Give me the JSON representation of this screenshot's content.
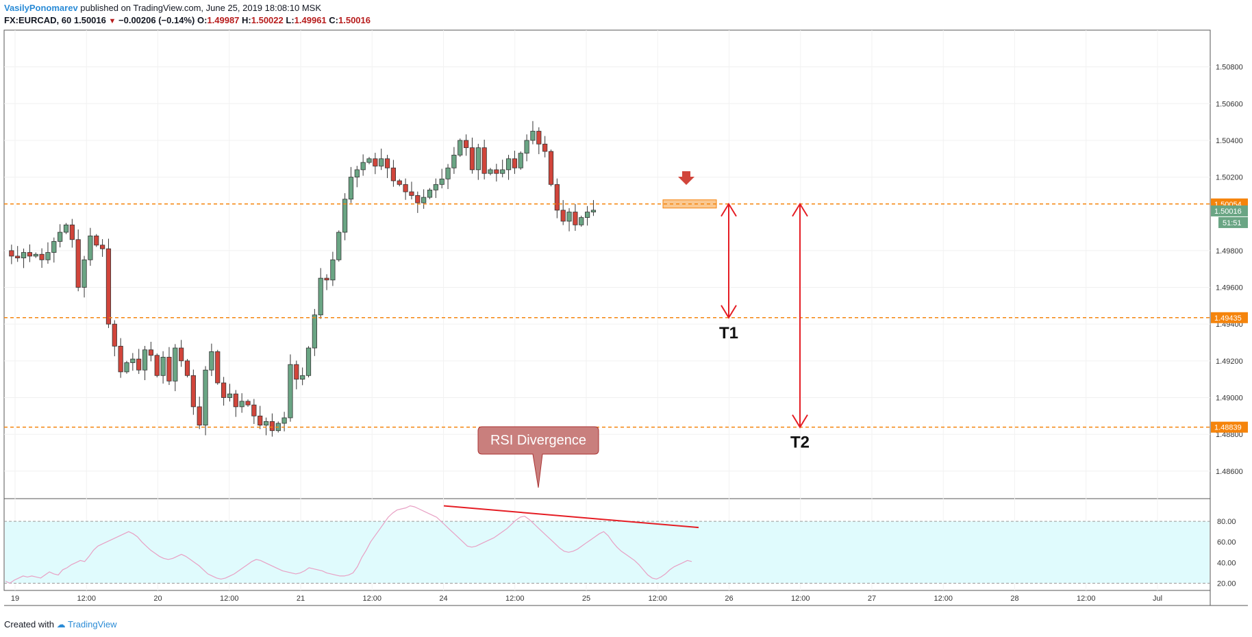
{
  "header": {
    "author": "VasilyPonomarev",
    "published": "published on TradingView.com, June 25, 2019 18:08:10 MSK",
    "symbol": "FX:EURCAD, 60",
    "last": "1.50016",
    "change": "−0.00206 (−0.14%)",
    "ohlc": {
      "o_label": "O:",
      "o": "1.49987",
      "h_label": "H:",
      "h": "1.50022",
      "l_label": "L:",
      "l": "1.49961",
      "c_label": "C:",
      "c": "1.50016"
    }
  },
  "footer": {
    "created_with": "Created with",
    "brand": "TradingView"
  },
  "colors": {
    "up": "#6aa584",
    "down": "#d1453b",
    "level": "#f5840c",
    "arrow": "#e51c23",
    "rsi": "#e8a0c4",
    "rsi_band": "#e0fbfd",
    "bubble": "#c97f7d"
  },
  "chart_data": {
    "type": "candlestick",
    "price_axis": {
      "ticks": [
        "1.50800",
        "1.50600",
        "1.50400",
        "1.50200",
        "1.49800",
        "1.49600",
        "1.49400",
        "1.49200",
        "1.49000",
        "1.48800",
        "1.48600"
      ],
      "range": [
        1.4845,
        1.51
      ]
    },
    "time_axis": {
      "ticks": [
        "19",
        "12:00",
        "20",
        "12:00",
        "21",
        "12:00",
        "24",
        "12:00",
        "25",
        "12:00",
        "26",
        "12:00",
        "27",
        "12:00",
        "28",
        "12:00",
        "Jul"
      ]
    },
    "levels": [
      {
        "price": 1.50054,
        "label": "1.50054"
      },
      {
        "price": 1.49435,
        "label": "1.49435"
      },
      {
        "price": 1.48839,
        "label": "1.48839"
      }
    ],
    "current_price": {
      "value": 1.50016,
      "label": "1.50016",
      "countdown": "51:51"
    },
    "targets": [
      {
        "label": "T1",
        "from": 1.50054,
        "to": 1.49435
      },
      {
        "label": "T2",
        "from": 1.50054,
        "to": 1.48839
      }
    ],
    "annotation": "RSI Divergence",
    "rsi": {
      "ticks": [
        "80.00",
        "60.00",
        "40.00",
        "20.00"
      ],
      "band": [
        20,
        80
      ],
      "range": [
        15,
        100
      ],
      "values": [
        22,
        20,
        23,
        25,
        27,
        26,
        27,
        26,
        25,
        28,
        31,
        29,
        28,
        33,
        35,
        38,
        40,
        42,
        41,
        46,
        52,
        56,
        58,
        60,
        62,
        64,
        66,
        68,
        70,
        68,
        65,
        60,
        56,
        52,
        49,
        46,
        44,
        43,
        44,
        46,
        48,
        46,
        43,
        40,
        37,
        33,
        29,
        27,
        25,
        24,
        25,
        27,
        29,
        32,
        35,
        38,
        41,
        43,
        42,
        40,
        38,
        36,
        34,
        32,
        31,
        30,
        29,
        30,
        32,
        35,
        34,
        33,
        32,
        30,
        29,
        28,
        27,
        27,
        28,
        30,
        36,
        45,
        52,
        60,
        66,
        72,
        78,
        84,
        88,
        91,
        92,
        93,
        95,
        94,
        92,
        90,
        88,
        86,
        84,
        80,
        76,
        72,
        68,
        64,
        60,
        56,
        55,
        56,
        58,
        60,
        62,
        64,
        67,
        70,
        73,
        77,
        81,
        84,
        85,
        82,
        78,
        74,
        70,
        66,
        62,
        58,
        54,
        51,
        50,
        51,
        53,
        56,
        59,
        62,
        65,
        68,
        70,
        66,
        60,
        55,
        51,
        48,
        45,
        42,
        38,
        33,
        28,
        25,
        24,
        26,
        29,
        33,
        36,
        38,
        40,
        42,
        41
      ]
    },
    "rsi_divergence_line": {
      "from": {
        "x": "24",
        "rsi": 95
      },
      "to": {
        "x": "26",
        "rsi": 74
      }
    }
  }
}
